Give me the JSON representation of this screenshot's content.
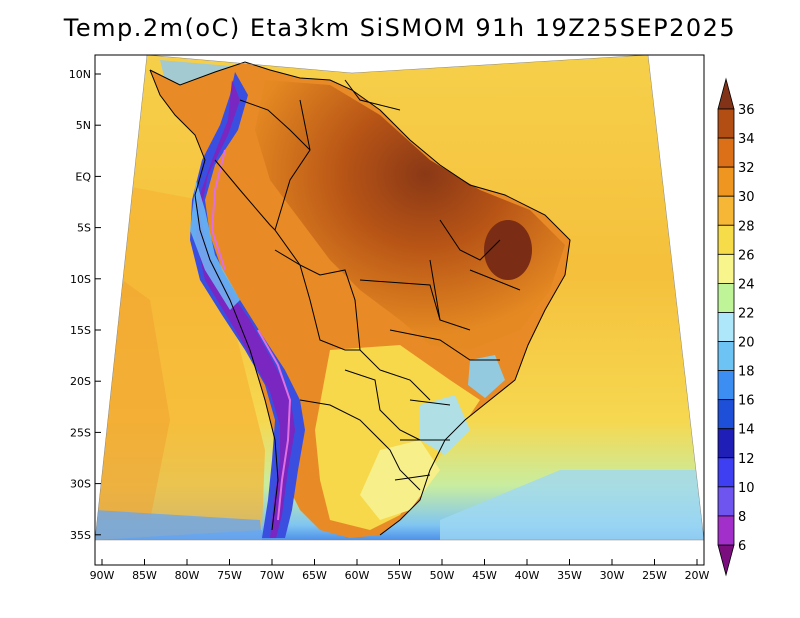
{
  "title": "Temp.2m(oC) Eta3km SiSMOM 91h 19Z25SEP2025",
  "axes": {
    "lat_labels": [
      "10N",
      "5N",
      "EQ",
      "5S",
      "10S",
      "15S",
      "20S",
      "25S",
      "30S",
      "35S"
    ],
    "lon_labels": [
      "90W",
      "85W",
      "80W",
      "75W",
      "70W",
      "65W",
      "60W",
      "55W",
      "50W",
      "45W",
      "40W",
      "35W",
      "30W",
      "25W",
      "20W"
    ]
  },
  "colorbar": {
    "levels": [
      "6",
      "8",
      "10",
      "12",
      "14",
      "16",
      "18",
      "20",
      "22",
      "24",
      "26",
      "28",
      "30",
      "32",
      "34",
      "36"
    ],
    "colors": [
      "#7b0e7f",
      "#a22fc9",
      "#6e55ef",
      "#3e3ef2",
      "#1f1fb8",
      "#1e4fd8",
      "#3c8ef2",
      "#6ec3f5",
      "#aee6fa",
      "#bff598",
      "#f7f58c",
      "#f7dc4a",
      "#f5b735",
      "#ee9620",
      "#db7018",
      "#b24e14",
      "#823317"
    ]
  },
  "palette": {
    "ocean_warm": "#f4b535",
    "ocean_mid": "#f7dc4a",
    "ocean_cool": "#c8eda0",
    "ocean_cold": "#5ea8ee",
    "land_hot": "#a04818",
    "land_warm": "#de7818",
    "land_mild": "#f0a030",
    "andes_cold": "#2a3bd0",
    "andes_peak": "#7a26c0",
    "border": "#000000"
  }
}
